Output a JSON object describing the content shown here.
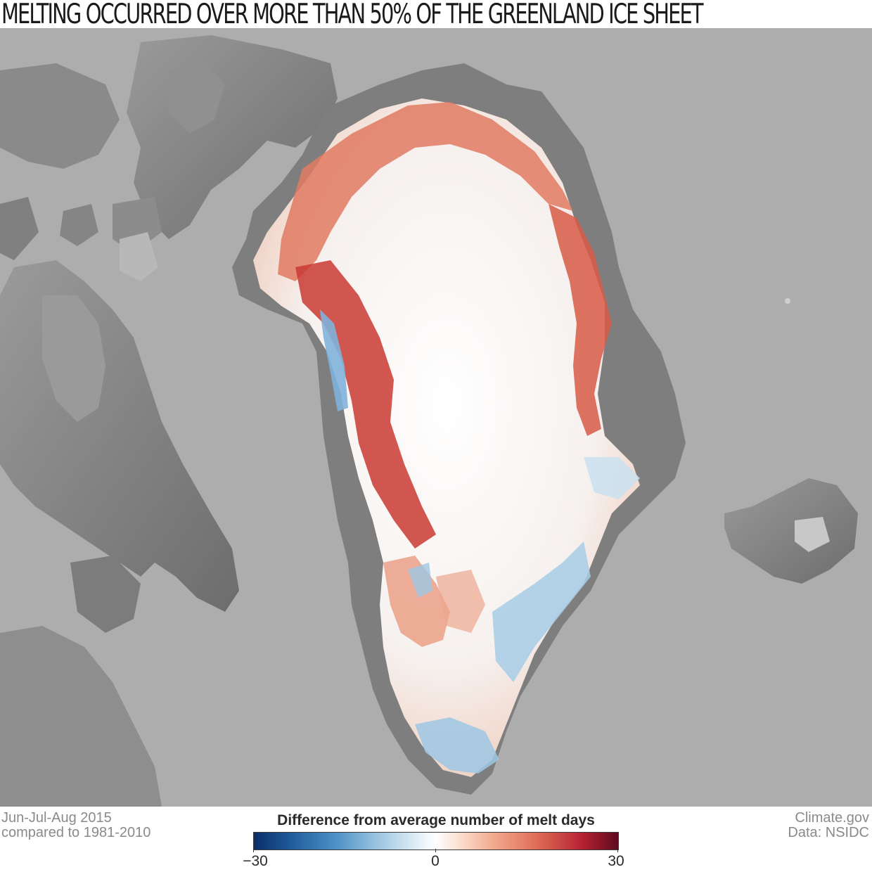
{
  "title": "MELTING OCCURRED OVER MORE THAN 50% OF THE GREENLAND ICE SHEET",
  "footer": {
    "season_line1": "Jun-Jul-Aug 2015",
    "season_line2": "compared to 1981-2010",
    "credit_line1": "Climate.gov",
    "credit_line2": "Data: NSIDC"
  },
  "legend": {
    "title": "Difference from average number of melt days",
    "min_label": "−30",
    "mid_label": "0",
    "max_label": "30",
    "colors": {
      "min": "#0a2f66",
      "mid": "#ffffff",
      "max": "#5e0a1e"
    }
  },
  "map_colors": {
    "ocean": "#adadad",
    "land": "#7a7a7a",
    "ice_neutral": "#f6f8fb",
    "melt_above": "#d9553f",
    "melt_below": "#8fbfe0"
  }
}
